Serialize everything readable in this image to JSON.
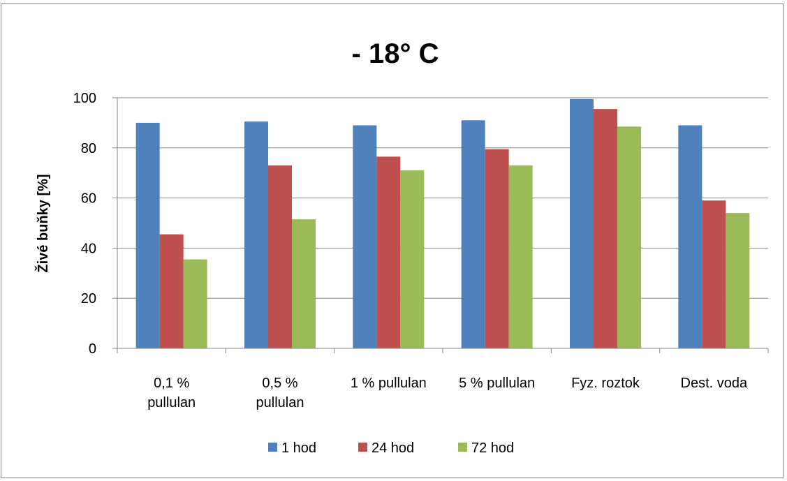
{
  "page": {
    "top_caption": ""
  },
  "chart_data": {
    "type": "bar",
    "title": "- 18° C",
    "xlabel": "",
    "ylabel": "Živé buňky [%]",
    "ylim": [
      0,
      100
    ],
    "yticks": [
      0,
      20,
      40,
      60,
      80,
      100
    ],
    "grid": true,
    "legend_position": "bottom",
    "categories": [
      [
        "0,1 %",
        "pullulan"
      ],
      [
        "0,5 %",
        "pullulan"
      ],
      [
        "1 % pullulan"
      ],
      [
        "5 % pullulan"
      ],
      [
        "Fyz. roztok"
      ],
      [
        "Dest. voda"
      ]
    ],
    "series": [
      {
        "name": "1 hod",
        "color": "#4f81bd",
        "values": [
          90,
          90.5,
          89,
          91,
          99.5,
          89
        ]
      },
      {
        "name": "24 hod",
        "color": "#c0504d",
        "values": [
          45.5,
          73,
          76.5,
          79.5,
          95.5,
          59
        ]
      },
      {
        "name": "72 hod",
        "color": "#9bbb59",
        "values": [
          35.5,
          51.5,
          71,
          73,
          88.5,
          54
        ]
      }
    ]
  }
}
